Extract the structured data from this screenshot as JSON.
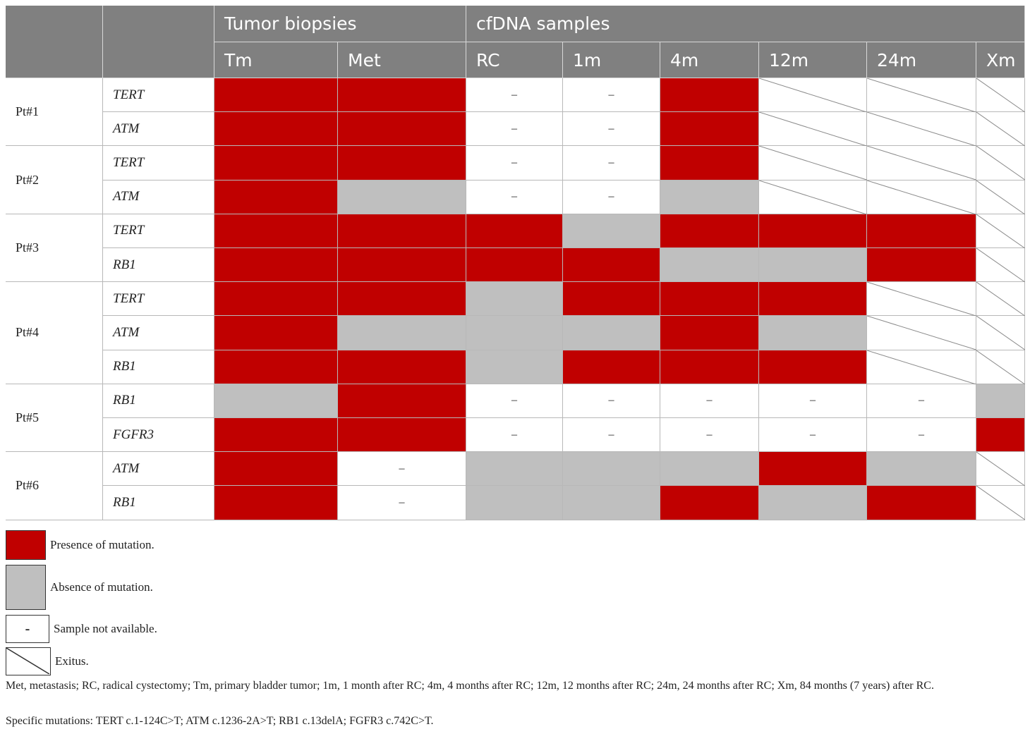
{
  "header": {
    "group_labels": [
      "Tumor biopsies",
      "cfDNA samples"
    ],
    "columns": [
      "Tm",
      "Met",
      "RC",
      "1m",
      "4m",
      "12m",
      "24m",
      "Xm"
    ]
  },
  "not_available_symbol": "–",
  "patients": [
    {
      "label": "Pt#1",
      "genes": [
        {
          "gene": "TERT",
          "states": [
            "present",
            "present",
            "na",
            "na",
            "present",
            "exitus",
            "exitus",
            "exitus"
          ]
        },
        {
          "gene": "ATM",
          "states": [
            "present",
            "present",
            "na",
            "na",
            "present",
            "exitus",
            "exitus",
            "exitus"
          ]
        }
      ]
    },
    {
      "label": "Pt#2",
      "genes": [
        {
          "gene": "TERT",
          "states": [
            "present",
            "present",
            "na",
            "na",
            "present",
            "exitus",
            "exitus",
            "exitus"
          ]
        },
        {
          "gene": "ATM",
          "states": [
            "present",
            "absent",
            "na",
            "na",
            "absent",
            "exitus",
            "exitus",
            "exitus"
          ]
        }
      ]
    },
    {
      "label": "Pt#3",
      "genes": [
        {
          "gene": "TERT",
          "states": [
            "present",
            "present",
            "present",
            "absent",
            "present",
            "present",
            "present",
            "exitus"
          ]
        },
        {
          "gene": "RB1",
          "states": [
            "present",
            "present",
            "present",
            "present",
            "absent",
            "absent",
            "present",
            "exitus"
          ]
        }
      ]
    },
    {
      "label": "Pt#4",
      "genes": [
        {
          "gene": "TERT",
          "states": [
            "present",
            "present",
            "absent",
            "present",
            "present",
            "present",
            "exitus",
            "exitus"
          ]
        },
        {
          "gene": "ATM",
          "states": [
            "present",
            "absent",
            "absent",
            "absent",
            "present",
            "absent",
            "exitus",
            "exitus"
          ]
        },
        {
          "gene": "RB1",
          "states": [
            "present",
            "present",
            "absent",
            "present",
            "present",
            "present",
            "exitus",
            "exitus"
          ]
        }
      ]
    },
    {
      "label": "Pt#5",
      "genes": [
        {
          "gene": "RB1",
          "states": [
            "absent",
            "present",
            "na",
            "na",
            "na",
            "na",
            "na",
            "absent"
          ]
        },
        {
          "gene": "FGFR3",
          "states": [
            "present",
            "present",
            "na",
            "na",
            "na",
            "na",
            "na",
            "present"
          ]
        }
      ]
    },
    {
      "label": "Pt#6",
      "genes": [
        {
          "gene": "ATM",
          "states": [
            "present",
            "na",
            "absent",
            "absent",
            "absent",
            "present",
            "absent",
            "exitus"
          ]
        },
        {
          "gene": "RB1",
          "states": [
            "present",
            "na",
            "absent",
            "absent",
            "present",
            "absent",
            "present",
            "exitus"
          ]
        }
      ]
    }
  ],
  "legend": {
    "present": "Presence of mutation.",
    "absent": "Absence of mutation.",
    "na": "Sample not available.",
    "na_symbol": "-",
    "exitus": "Exitus."
  },
  "colors": {
    "present": "#c00000",
    "absent": "#bfbfbf",
    "header": "#808080"
  },
  "footnotes": [
    "Met, metastasis; RC, radical cystectomy; Tm, primary bladder tumor; 1m, 1 month after RC; 4m, 4 months after RC; 12m, 12 months after RC; 24m, 24 months after RC; Xm, 84 months (7 years) after RC.",
    "Specific mutations: TERT c.1-124C>T; ATM c.1236-2A>T; RB1 c.13delA; FGFR3 c.742C>T."
  ]
}
